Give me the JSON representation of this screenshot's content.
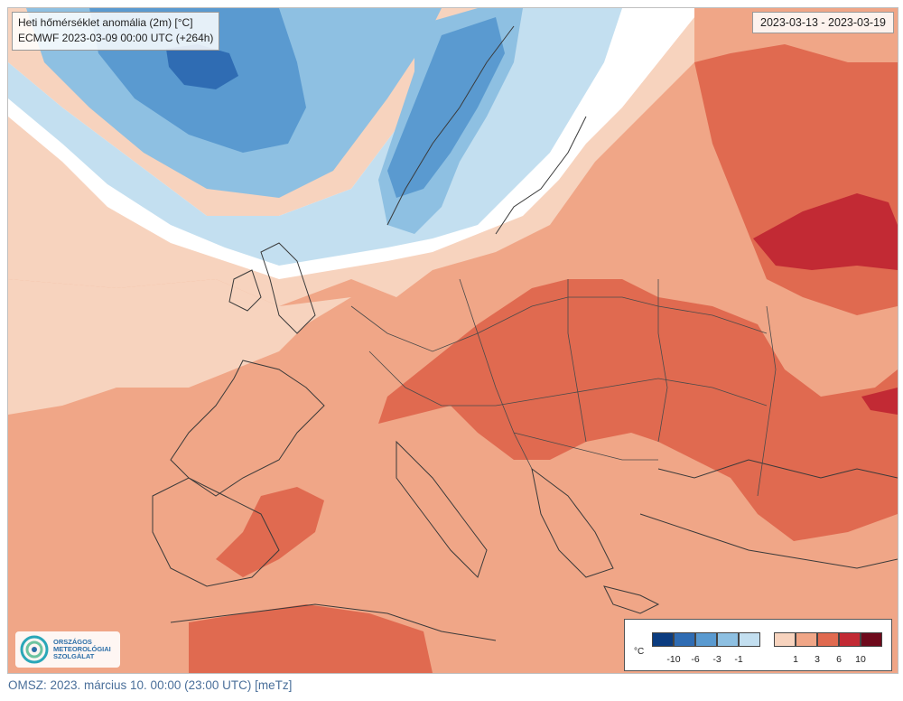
{
  "map": {
    "title_line1": "Heti hőmérséklet anomália (2m) [°C]",
    "title_line2": "ECMWF 2023-03-09 00:00 UTC (+264h)",
    "date_range": "2023-03-13 - 2023-03-19",
    "logo": {
      "icon": "omsz-logo-swirl-icon",
      "lines": [
        "ORSZÁGOS",
        "METEOROLÓGIAI",
        "SZOLGÁLAT"
      ]
    },
    "legend": {
      "unit": "°C",
      "cold_colors": [
        "#0b3c80",
        "#2f6cb3",
        "#5a9ad0",
        "#8ec0e2",
        "#c3dff0"
      ],
      "warm_colors": [
        "#f7d3be",
        "#f0a687",
        "#e06a50",
        "#c22a34",
        "#6e0a1c"
      ],
      "cold_ticks": [
        "-10",
        "-6",
        "-3",
        "-1"
      ],
      "warm_ticks": [
        "1",
        "3",
        "6",
        "10"
      ]
    }
  },
  "footer": {
    "text": "OMSZ: 2023. március 10. 00:00 (23:00 UTC) [meTz]"
  }
}
